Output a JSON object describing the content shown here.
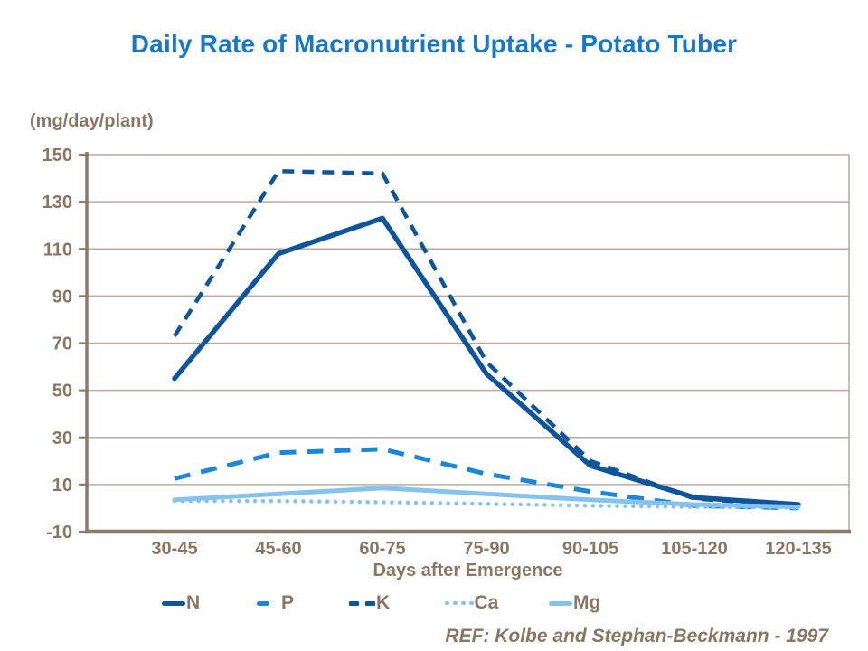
{
  "footer_ref": "REF: Kolbe and Stephan-Beckmann - 1997",
  "colors": {
    "title_blue": "#1878c8",
    "axis_text_brown": "#8a7663",
    "axis_line": "#8b7b6b",
    "gridline": "#b7aca0",
    "dark_navy": "#10559a",
    "medium_blue": "#1c87d9",
    "light_blue": "#85c2ed"
  },
  "chart_data": {
    "type": "line",
    "title": "Daily Rate of Macronutrient Uptake - Potato Tuber",
    "ylabel": "(mg/day/plant)",
    "xlabel": "Days after Emergence",
    "categories": [
      "30-45",
      "45-60",
      "60-75",
      "75-90",
      "90-105",
      "105-120",
      "120-135"
    ],
    "series": [
      {
        "name": "N",
        "style": "solid",
        "color": "#10559a",
        "values": [
          55,
          108,
          123,
          57,
          18,
          4.5,
          1.5
        ]
      },
      {
        "name": "P",
        "style": "long-dash",
        "color": "#1c87d9",
        "values": [
          12.5,
          23.5,
          25,
          14.5,
          7,
          1,
          0
        ]
      },
      {
        "name": "K",
        "style": "dash",
        "color": "#10559a",
        "values": [
          73,
          143,
          142,
          62,
          20,
          4,
          1
        ]
      },
      {
        "name": "Ca",
        "style": "dot",
        "color": "#85c2ed",
        "values": [
          3,
          3,
          2.5,
          1.8,
          1,
          0.5,
          0.2
        ]
      },
      {
        "name": "Mg",
        "style": "solid",
        "color": "#85c2ed",
        "values": [
          3.5,
          6,
          8.5,
          6,
          3.5,
          1.5,
          0.5
        ]
      }
    ],
    "ylim": [
      -10,
      150
    ],
    "yticks": [
      150,
      130,
      110,
      90,
      70,
      50,
      30,
      10,
      -10
    ],
    "grid": true,
    "legend_position": "bottom"
  }
}
